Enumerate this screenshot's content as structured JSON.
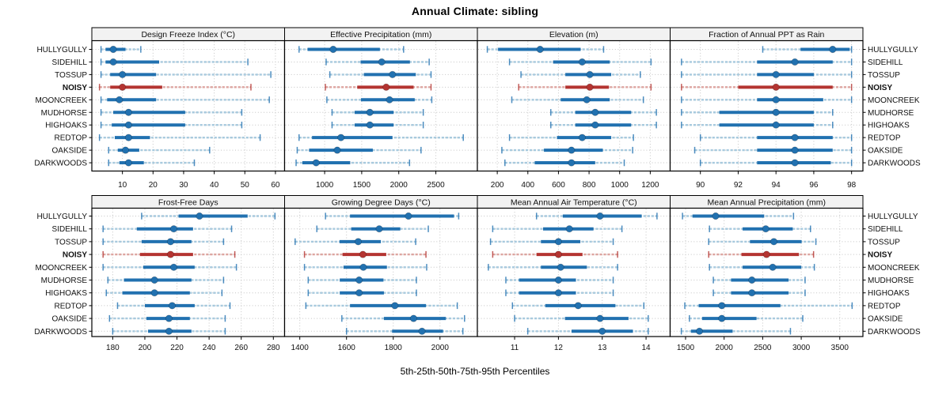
{
  "chart_data": {
    "type": "dot-interval-trellis",
    "title": "Annual Climate: sibling",
    "caption": "5th-25th-50th-75th-95th Percentiles",
    "percentiles": [
      5,
      25,
      50,
      75,
      95
    ],
    "legend": "none",
    "grid": "dotted",
    "sites": [
      "HULLYGULLY",
      "SIDEHILL",
      "TOSSUP",
      "NOISY",
      "MOONCREEK",
      "MUDHORSE",
      "HIGHOAKS",
      "REDTOP",
      "OAKSIDE",
      "DARKWOODS"
    ],
    "highlight_site": "NOISY",
    "colors": {
      "series": "#2171b0",
      "series_light": "#a8cade",
      "highlight": "#b43431",
      "highlight_light": "#dda5a0",
      "gridline": "#c4c4c4",
      "header_bg": "#f2f2f2",
      "border": "#000000"
    },
    "panels": [
      {
        "id": "design-freeze-index",
        "title": "Design Freeze Index (°C)",
        "row": 0,
        "col": 0,
        "xlim": [
          0,
          63
        ],
        "ticks": [
          10,
          20,
          30,
          40,
          50,
          60
        ],
        "values": [
          [
            3,
            4.5,
            7,
            11,
            16
          ],
          [
            3,
            4.5,
            7,
            22,
            51
          ],
          [
            3,
            6,
            10,
            21,
            58.5
          ],
          [
            2.5,
            6,
            10,
            23,
            52
          ],
          [
            3,
            5,
            9,
            21,
            58
          ],
          [
            3,
            7,
            12,
            30.5,
            49
          ],
          [
            3,
            6.5,
            12,
            30.5,
            49
          ],
          [
            2.5,
            7.5,
            12,
            19,
            55
          ],
          [
            5.5,
            8.5,
            11,
            15.5,
            38.5
          ],
          [
            5.5,
            9,
            12,
            17,
            33.5
          ]
        ]
      },
      {
        "id": "effective-precipitation",
        "title": "Effective Precipitation (mm)",
        "row": 0,
        "col": 1,
        "xlim": [
          460,
          3060
        ],
        "ticks": [
          1000,
          1500,
          2000,
          2500
        ],
        "values": [
          [
            655,
            770,
            1115,
            1745,
            2065
          ],
          [
            1020,
            1485,
            1770,
            2150,
            2410
          ],
          [
            1070,
            1530,
            1915,
            2230,
            2435
          ],
          [
            1010,
            1440,
            1830,
            2200,
            2435
          ],
          [
            1030,
            1490,
            1875,
            2215,
            2445
          ],
          [
            1100,
            1405,
            1610,
            1930,
            2330
          ],
          [
            1100,
            1405,
            1610,
            1930,
            2330
          ],
          [
            655,
            830,
            1220,
            1915,
            2870
          ],
          [
            630,
            790,
            1170,
            1650,
            2300
          ],
          [
            615,
            700,
            885,
            1345,
            2145
          ]
        ]
      },
      {
        "id": "elevation",
        "title": "Elevation (m)",
        "row": 0,
        "col": 2,
        "xlim": [
          70,
          1330
        ],
        "ticks": [
          200,
          400,
          600,
          800,
          1000,
          1200
        ],
        "values": [
          [
            135,
            205,
            480,
            745,
            895
          ],
          [
            280,
            565,
            755,
            935,
            1205
          ],
          [
            355,
            645,
            805,
            945,
            1135
          ],
          [
            340,
            645,
            805,
            930,
            1205
          ],
          [
            295,
            615,
            785,
            935,
            1155
          ],
          [
            550,
            710,
            840,
            1075,
            1240
          ],
          [
            550,
            710,
            840,
            1075,
            1240
          ],
          [
            280,
            590,
            755,
            945,
            1090
          ],
          [
            230,
            505,
            685,
            890,
            1085
          ],
          [
            250,
            445,
            685,
            840,
            1030
          ]
        ]
      },
      {
        "id": "fraction-ppt-rain",
        "title": "Fraction of Annual PPT as Rain",
        "row": 0,
        "col": 3,
        "xlim": [
          88.4,
          98.6
        ],
        "ticks": [
          90,
          92,
          94,
          96,
          98
        ],
        "values": [
          [
            93.3,
            95.3,
            97,
            97.9,
            98
          ],
          [
            89,
            93,
            95,
            97,
            98
          ],
          [
            89,
            93,
            94,
            96,
            98
          ],
          [
            89,
            92,
            94,
            97,
            98
          ],
          [
            89,
            93,
            94,
            96.5,
            98
          ],
          [
            89,
            91,
            94,
            96,
            97
          ],
          [
            89,
            91,
            94,
            96,
            97
          ],
          [
            90,
            93,
            95,
            97,
            98
          ],
          [
            89.7,
            93,
            95,
            97,
            98
          ],
          [
            90,
            93,
            95,
            96.9,
            98
          ]
        ]
      },
      {
        "id": "frost-free-days",
        "title": "Frost-Free Days",
        "row": 1,
        "col": 0,
        "xlim": [
          167,
          287
        ],
        "ticks": [
          180,
          200,
          220,
          240,
          260,
          280
        ],
        "values": [
          [
            198,
            221,
            234,
            264,
            281
          ],
          [
            174,
            195,
            218,
            230,
            254
          ],
          [
            174,
            198,
            216,
            229,
            249
          ],
          [
            174,
            197,
            216,
            230,
            256
          ],
          [
            174,
            199,
            218,
            231,
            257
          ],
          [
            177,
            187,
            206,
            229,
            249
          ],
          [
            176,
            186,
            206,
            228,
            248
          ],
          [
            183,
            200,
            217,
            231,
            253
          ],
          [
            178,
            201,
            215,
            228,
            250
          ],
          [
            180,
            202,
            215,
            229,
            250
          ]
        ]
      },
      {
        "id": "growing-degree-days",
        "title": "Growing Degree Days (°C)",
        "row": 1,
        "col": 1,
        "xlim": [
          1335,
          2160
        ],
        "ticks": [
          1400,
          1600,
          1800,
          2000
        ],
        "values": [
          [
            1510,
            1615,
            1865,
            2060,
            2080
          ],
          [
            1473,
            1620,
            1740,
            1830,
            1950
          ],
          [
            1380,
            1570,
            1650,
            1747,
            1896
          ],
          [
            1420,
            1583,
            1670,
            1770,
            1940
          ],
          [
            1420,
            1587,
            1672,
            1773,
            1943
          ],
          [
            1436,
            1571,
            1654,
            1758,
            1899
          ],
          [
            1436,
            1571,
            1654,
            1760,
            1899
          ],
          [
            1426,
            1615,
            1807,
            1940,
            2074
          ],
          [
            1580,
            1760,
            1887,
            2025,
            2105
          ],
          [
            1600,
            1795,
            1923,
            2013,
            2098
          ]
        ]
      },
      {
        "id": "mean-annual-air-temp",
        "title": "Mean Annual Air Temperature (°C)",
        "row": 1,
        "col": 2,
        "xlim": [
          10.15,
          14.55
        ],
        "ticks": [
          11,
          12,
          13,
          14
        ],
        "values": [
          [
            11.5,
            12.1,
            12.95,
            13.9,
            14.25
          ],
          [
            10.5,
            11.65,
            12.25,
            12.8,
            13.45
          ],
          [
            10.45,
            11.6,
            12.0,
            12.5,
            13.25
          ],
          [
            10.5,
            11.5,
            12.0,
            12.55,
            13.35
          ],
          [
            10.4,
            11.6,
            12.05,
            12.65,
            13.35
          ],
          [
            10.8,
            11.1,
            12.0,
            12.4,
            13.25
          ],
          [
            10.8,
            11.1,
            12.0,
            12.4,
            13.25
          ],
          [
            10.95,
            11.7,
            12.45,
            13.3,
            13.95
          ],
          [
            11.0,
            12.15,
            12.95,
            13.6,
            14.05
          ],
          [
            11.3,
            12.3,
            13.0,
            13.7,
            14.05
          ]
        ]
      },
      {
        "id": "mean-annual-precip",
        "title": "Mean Annual Precipitation (mm)",
        "row": 1,
        "col": 3,
        "xlim": [
          1300,
          3800
        ],
        "ticks": [
          1500,
          2000,
          2500,
          3000,
          3500
        ],
        "values": [
          [
            1460,
            1590,
            1890,
            2520,
            2900
          ],
          [
            1810,
            2240,
            2540,
            2890,
            3120
          ],
          [
            1800,
            2335,
            2645,
            3005,
            3190
          ],
          [
            1800,
            2225,
            2550,
            2970,
            3160
          ],
          [
            1810,
            2240,
            2630,
            3000,
            3170
          ],
          [
            1860,
            2090,
            2360,
            2835,
            3050
          ],
          [
            1860,
            2090,
            2360,
            2835,
            3050
          ],
          [
            1490,
            1670,
            1970,
            2730,
            3660
          ],
          [
            1550,
            1715,
            1970,
            2420,
            3020
          ],
          [
            1445,
            1570,
            1680,
            2110,
            2860
          ]
        ]
      }
    ]
  }
}
